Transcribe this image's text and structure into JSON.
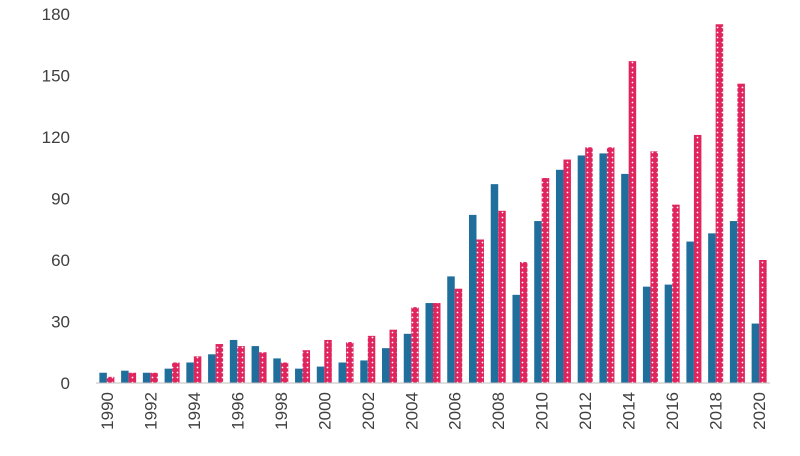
{
  "chart_data": {
    "type": "bar",
    "title": "",
    "xlabel": "",
    "ylabel": "",
    "ylim": [
      0,
      180
    ],
    "yticks": [
      0,
      30,
      60,
      90,
      120,
      150,
      180
    ],
    "grid": false,
    "legend": "none",
    "categories": [
      1990,
      1991,
      1992,
      1993,
      1994,
      1995,
      1996,
      1997,
      1998,
      1999,
      2000,
      2001,
      2002,
      2003,
      2004,
      2005,
      2006,
      2007,
      2008,
      2009,
      2010,
      2011,
      2012,
      2013,
      2014,
      2015,
      2016,
      2017,
      2018,
      2019,
      2020
    ],
    "xtick_labels": [
      "1990",
      "1992",
      "1994",
      "1996",
      "1998",
      "2000",
      "2002",
      "2004",
      "2006",
      "2008",
      "2010",
      "2012",
      "2014",
      "2016",
      "2018",
      "2020"
    ],
    "series": [
      {
        "color": "#1f6e9c",
        "pattern": "solid",
        "values": [
          5,
          6,
          5,
          7,
          10,
          14,
          21,
          18,
          12,
          7,
          8,
          10,
          11,
          17,
          24,
          39,
          52,
          82,
          97,
          43,
          79,
          104,
          111,
          112,
          102,
          47,
          48,
          69,
          73,
          79,
          29
        ]
      },
      {
        "color": "#e0245e",
        "pattern": "white-dots",
        "values": [
          3,
          5,
          5,
          10,
          13,
          19,
          18,
          15,
          10,
          16,
          21,
          20,
          23,
          26,
          37,
          39,
          46,
          70,
          84,
          59,
          100,
          109,
          115,
          115,
          157,
          113,
          87,
          121,
          175,
          146,
          60
        ]
      }
    ]
  }
}
